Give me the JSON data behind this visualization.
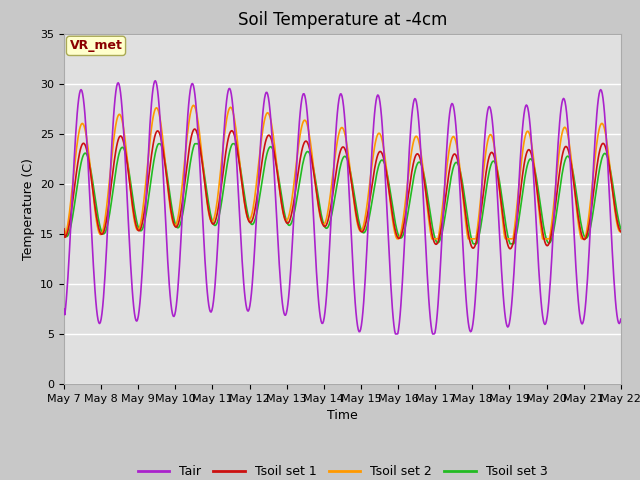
{
  "title": "Soil Temperature at -4cm",
  "xlabel": "Time",
  "ylabel": "Temperature (C)",
  "ylim": [
    0,
    35
  ],
  "yticks": [
    0,
    5,
    10,
    15,
    20,
    25,
    30,
    35
  ],
  "fig_bg_color": "#c8c8c8",
  "plot_bg_color": "#e0e0e0",
  "colors": {
    "Tair": "#aa22cc",
    "Tsoil1": "#cc1111",
    "Tsoil2": "#ff9900",
    "Tsoil3": "#22bb22"
  },
  "legend_labels": [
    "Tair",
    "Tsoil set 1",
    "Tsoil set 2",
    "Tsoil set 3"
  ],
  "annotation_text": "VR_met",
  "annotation_color": "#8b0000",
  "annotation_bg": "#ffffcc",
  "n_points": 720,
  "title_fontsize": 12,
  "tick_fontsize": 8,
  "label_fontsize": 9
}
